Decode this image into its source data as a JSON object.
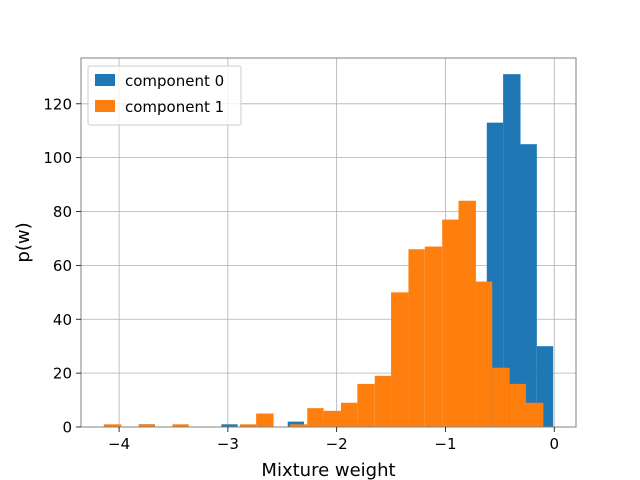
{
  "chart_data": {
    "type": "bar",
    "title": "",
    "xlabel": "Mixture weight",
    "ylabel": "p(w)",
    "xlim": [
      -4.35,
      0.2
    ],
    "ylim": [
      0,
      137
    ],
    "xticks": [
      -4,
      -3,
      -2,
      -1,
      0
    ],
    "xtick_labels": [
      "−4",
      "−3",
      "−2",
      "−1",
      "0"
    ],
    "yticks": [
      0,
      20,
      40,
      60,
      80,
      100,
      120
    ],
    "ytick_labels": [
      "0",
      "20",
      "40",
      "60",
      "80",
      "100",
      "120"
    ],
    "grid": true,
    "legend_position": "top-left",
    "series": [
      {
        "name": "component 0",
        "color": "#1f77b4",
        "bins": [
          {
            "x0": -3.82,
            "x1": -3.67,
            "value": 1
          },
          {
            "x0": -3.06,
            "x1": -2.91,
            "value": 1
          },
          {
            "x0": -2.45,
            "x1": -2.3,
            "value": 2
          },
          {
            "x0": -0.62,
            "x1": -0.47,
            "value": 113
          },
          {
            "x0": -0.47,
            "x1": -0.31,
            "value": 131
          },
          {
            "x0": -0.31,
            "x1": -0.16,
            "value": 105
          },
          {
            "x0": -0.16,
            "x1": -0.01,
            "value": 30
          }
        ]
      },
      {
        "name": "component 1",
        "color": "#ff7f0e",
        "bins": [
          {
            "x0": -4.14,
            "x1": -3.98,
            "value": 1
          },
          {
            "x0": -3.82,
            "x1": -3.67,
            "value": 1
          },
          {
            "x0": -3.51,
            "x1": -3.36,
            "value": 1
          },
          {
            "x0": -2.89,
            "x1": -2.74,
            "value": 1
          },
          {
            "x0": -2.74,
            "x1": -2.58,
            "value": 5
          },
          {
            "x0": -2.43,
            "x1": -2.27,
            "value": 1
          },
          {
            "x0": -2.27,
            "x1": -2.12,
            "value": 7
          },
          {
            "x0": -2.12,
            "x1": -1.96,
            "value": 6
          },
          {
            "x0": -1.96,
            "x1": -1.81,
            "value": 9
          },
          {
            "x0": -1.81,
            "x1": -1.65,
            "value": 16
          },
          {
            "x0": -1.65,
            "x1": -1.5,
            "value": 19
          },
          {
            "x0": -1.5,
            "x1": -1.34,
            "value": 50
          },
          {
            "x0": -1.34,
            "x1": -1.19,
            "value": 66
          },
          {
            "x0": -1.19,
            "x1": -1.03,
            "value": 67
          },
          {
            "x0": -1.03,
            "x1": -0.88,
            "value": 77
          },
          {
            "x0": -0.88,
            "x1": -0.72,
            "value": 84
          },
          {
            "x0": -0.72,
            "x1": -0.57,
            "value": 54
          },
          {
            "x0": -0.57,
            "x1": -0.41,
            "value": 22
          },
          {
            "x0": -0.41,
            "x1": -0.26,
            "value": 16
          },
          {
            "x0": -0.26,
            "x1": -0.1,
            "value": 9
          }
        ]
      }
    ]
  }
}
